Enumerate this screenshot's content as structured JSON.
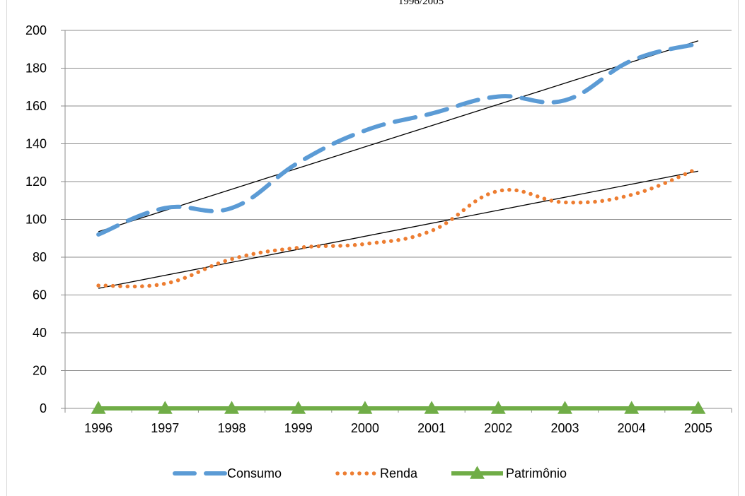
{
  "chart_data": {
    "type": "line",
    "title": "1996/2005",
    "categories": [
      "1996",
      "1997",
      "1998",
      "1999",
      "2000",
      "2001",
      "2002",
      "2003",
      "2004",
      "2005"
    ],
    "ylim": [
      0,
      200
    ],
    "y_ticks": [
      "0",
      "20",
      "40",
      "60",
      "80",
      "100",
      "120",
      "140",
      "160",
      "180",
      "200"
    ],
    "grid": "horizontal",
    "legend_position": "bottom",
    "series": [
      {
        "name": "Consumo",
        "values": [
          92,
          106,
          106,
          130,
          147,
          156,
          165,
          163,
          184,
          193
        ],
        "color": "#5B9BD5",
        "style": "dashed",
        "trendline": [
          93.5,
          194.5
        ]
      },
      {
        "name": "Renda",
        "values": [
          65,
          66,
          79,
          85,
          87,
          94,
          115,
          109,
          113,
          127
        ],
        "color": "#ED7D31",
        "style": "dotted",
        "trendline": [
          63.5,
          125.5
        ]
      },
      {
        "name": "Patrimônio",
        "values": [
          0,
          0,
          0,
          0,
          0,
          0,
          0,
          0,
          0,
          0
        ],
        "color": "#70AD47",
        "style": "solid",
        "marker": "triangle"
      }
    ]
  }
}
